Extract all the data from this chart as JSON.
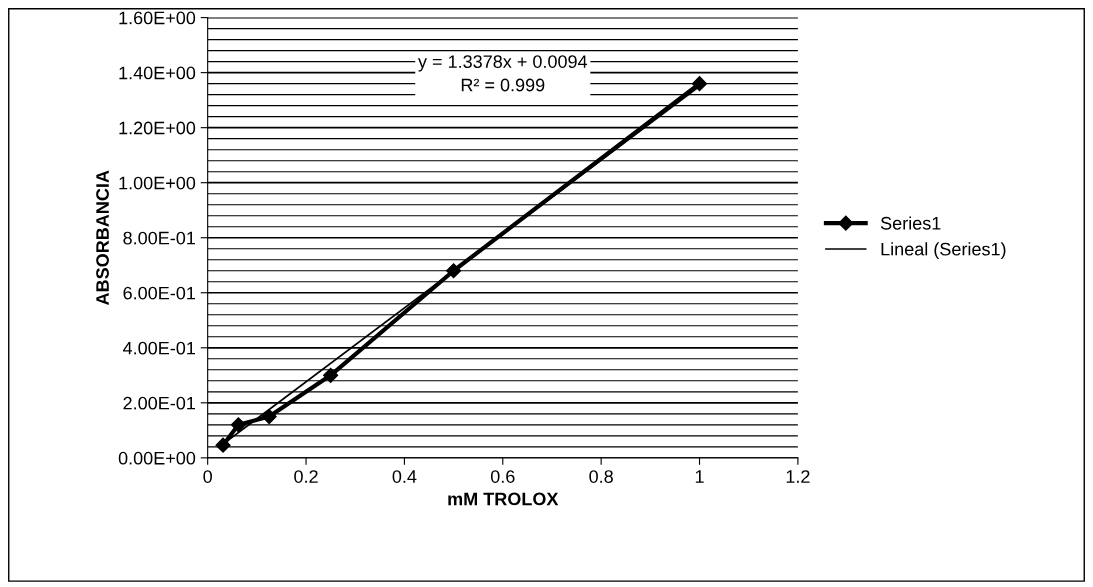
{
  "chart_data": {
    "type": "line",
    "xlabel": "mM TROLOX",
    "ylabel": "ABSORBANCIA",
    "x": [
      0.03125,
      0.0625,
      0.125,
      0.25,
      0.5,
      1
    ],
    "series": [
      {
        "name": "Series1",
        "color": "#000000",
        "values": [
          0.046,
          0.12,
          0.15,
          0.3,
          0.68,
          1.36
        ],
        "marker": "diamond"
      },
      {
        "name": "Lineal (Series1)",
        "color": "#000000",
        "type": "line",
        "x": [
          0.03125,
          1
        ],
        "values": [
          0.05,
          1.35
        ],
        "marker": "none"
      }
    ],
    "xlim": [
      0,
      1.2
    ],
    "xticks": [
      0,
      0.2,
      0.4,
      0.6,
      0.8,
      1,
      1.2
    ],
    "ylim": [
      0,
      1.6
    ],
    "yticks": [
      {
        "value": 0,
        "label": "0.00E+00"
      },
      {
        "value": 0.2,
        "label": "2.00E-01"
      },
      {
        "value": 0.4,
        "label": "4.00E-01"
      },
      {
        "value": 0.6,
        "label": "6.00E-01"
      },
      {
        "value": 0.8,
        "label": "8.00E-01"
      },
      {
        "value": 1.0,
        "label": "1.00E+00"
      },
      {
        "value": 1.2,
        "label": "1.20E+00"
      },
      {
        "value": 1.4,
        "label": "1.40E+00"
      },
      {
        "value": 1.6,
        "label": "1.60E+00"
      }
    ],
    "annotations": [
      "y = 1.3378x + 0.0094\nR² = 0.999"
    ],
    "grid": "y",
    "legend": "right",
    "line_style": "solid"
  }
}
